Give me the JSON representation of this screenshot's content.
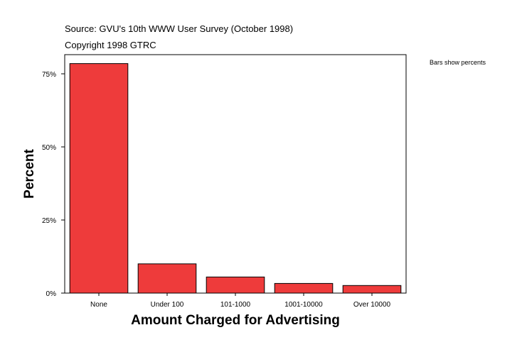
{
  "header": {
    "source": "Source: GVU's 10th WWW User Survey (October 1998)",
    "copyright": "Copyright 1998 GTRC"
  },
  "note": "Bars show percents",
  "chart_data": {
    "type": "bar",
    "categories": [
      "None",
      "Under 100",
      "101-1000",
      "1001-10000",
      "Over 10000"
    ],
    "values": [
      78.5,
      10.0,
      5.5,
      3.3,
      2.6
    ],
    "xlabel": "Amount Charged for Advertising",
    "ylabel": "Percent",
    "ylim": [
      0,
      100
    ],
    "yticks": [
      0,
      25,
      50,
      75
    ],
    "ytick_labels": [
      "0%",
      "25%",
      "50%",
      "75%"
    ],
    "bar_color": "#ee3b3b",
    "grid": false,
    "legend": "none"
  }
}
